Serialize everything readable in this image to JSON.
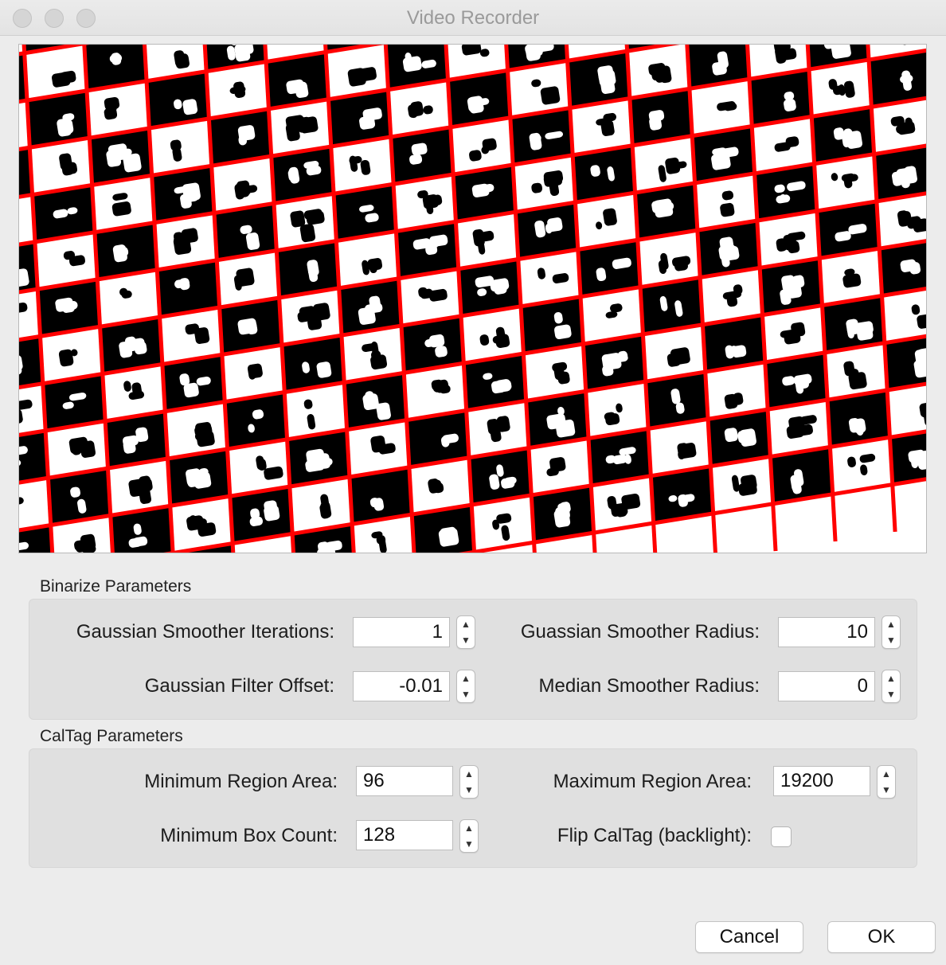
{
  "window": {
    "title": "Video Recorder"
  },
  "preview": {
    "line_color": "#ff0000"
  },
  "binarize": {
    "group_title": "Binarize Parameters",
    "gauss_iter_label": "Gaussian Smoother Iterations:",
    "gauss_iter_value": "1",
    "gauss_radius_label": "Guassian Smoother Radius:",
    "gauss_radius_value": "10",
    "filter_offset_label": "Gaussian Filter Offset:",
    "filter_offset_value": "-0.01",
    "median_radius_label": "Median Smoother Radius:",
    "median_radius_value": "0"
  },
  "caltag": {
    "group_title": "CalTag Parameters",
    "min_area_label": "Minimum Region Area:",
    "min_area_value": "96",
    "max_area_label": "Maximum Region Area:",
    "max_area_value": "19200",
    "min_box_label": "Minimum Box Count:",
    "min_box_value": "128",
    "flip_label": "Flip CalTag (backlight):",
    "flip_checked": false
  },
  "buttons": {
    "cancel": "Cancel",
    "ok": "OK"
  }
}
